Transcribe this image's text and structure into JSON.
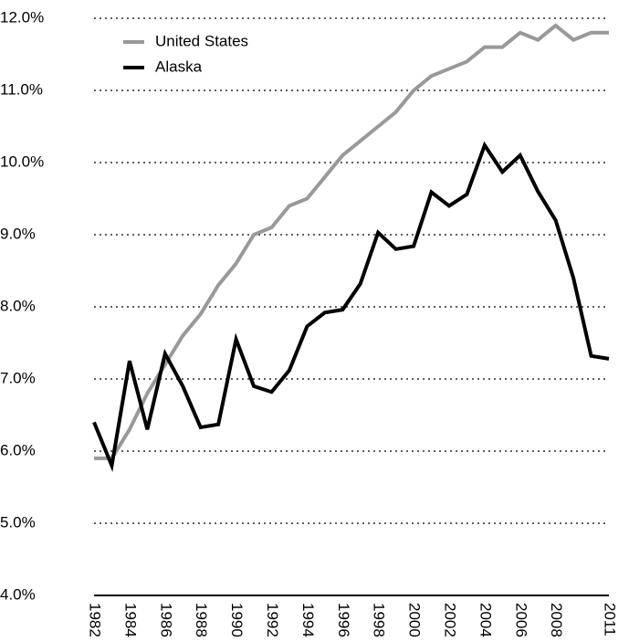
{
  "chart_data": {
    "type": "line",
    "x": [
      1982,
      1983,
      1984,
      1985,
      1986,
      1987,
      1988,
      1989,
      1990,
      1991,
      1992,
      1993,
      1994,
      1995,
      1996,
      1997,
      1998,
      1999,
      2000,
      2001,
      2002,
      2003,
      2004,
      2005,
      2006,
      2007,
      2008,
      2009,
      2010,
      2011
    ],
    "series": [
      {
        "name": "United States",
        "color": "#999999",
        "values": [
          5.9,
          5.9,
          6.3,
          6.8,
          7.2,
          7.6,
          7.9,
          8.3,
          8.6,
          9.0,
          9.1,
          9.4,
          9.5,
          9.8,
          10.1,
          10.3,
          10.5,
          10.7,
          11.0,
          11.2,
          11.3,
          11.4,
          11.6,
          11.6,
          11.8,
          11.7,
          11.9,
          11.7,
          11.8,
          11.8
        ]
      },
      {
        "name": "Alaska",
        "color": "#000000",
        "values": [
          6.4,
          5.8,
          7.25,
          6.3,
          7.35,
          6.9,
          6.33,
          6.37,
          7.55,
          6.9,
          6.82,
          7.12,
          7.73,
          7.92,
          7.96,
          8.32,
          9.03,
          8.8,
          8.84,
          9.59,
          9.4,
          9.56,
          10.24,
          9.87,
          10.1,
          9.6,
          9.2,
          8.4,
          7.32,
          7.28
        ]
      }
    ],
    "xlim": [
      1982,
      2011
    ],
    "xticks": [
      1982,
      1984,
      1986,
      1988,
      1990,
      1992,
      1994,
      1996,
      1998,
      2000,
      2002,
      2004,
      2006,
      2008,
      2011
    ],
    "ylim": [
      4,
      12
    ],
    "yticks": [
      {
        "value": 4,
        "label": "4.0%"
      },
      {
        "value": 5,
        "label": "5.0%"
      },
      {
        "value": 6,
        "label": "6.0%"
      },
      {
        "value": 7,
        "label": "7.0%"
      },
      {
        "value": 8,
        "label": "8.0%"
      },
      {
        "value": 9,
        "label": "9.0%"
      },
      {
        "value": 10,
        "label": "10.0%"
      },
      {
        "value": 11,
        "label": "11.0%"
      },
      {
        "value": 12,
        "label": "12.0%"
      }
    ],
    "grid": true,
    "legend": "top-left"
  }
}
